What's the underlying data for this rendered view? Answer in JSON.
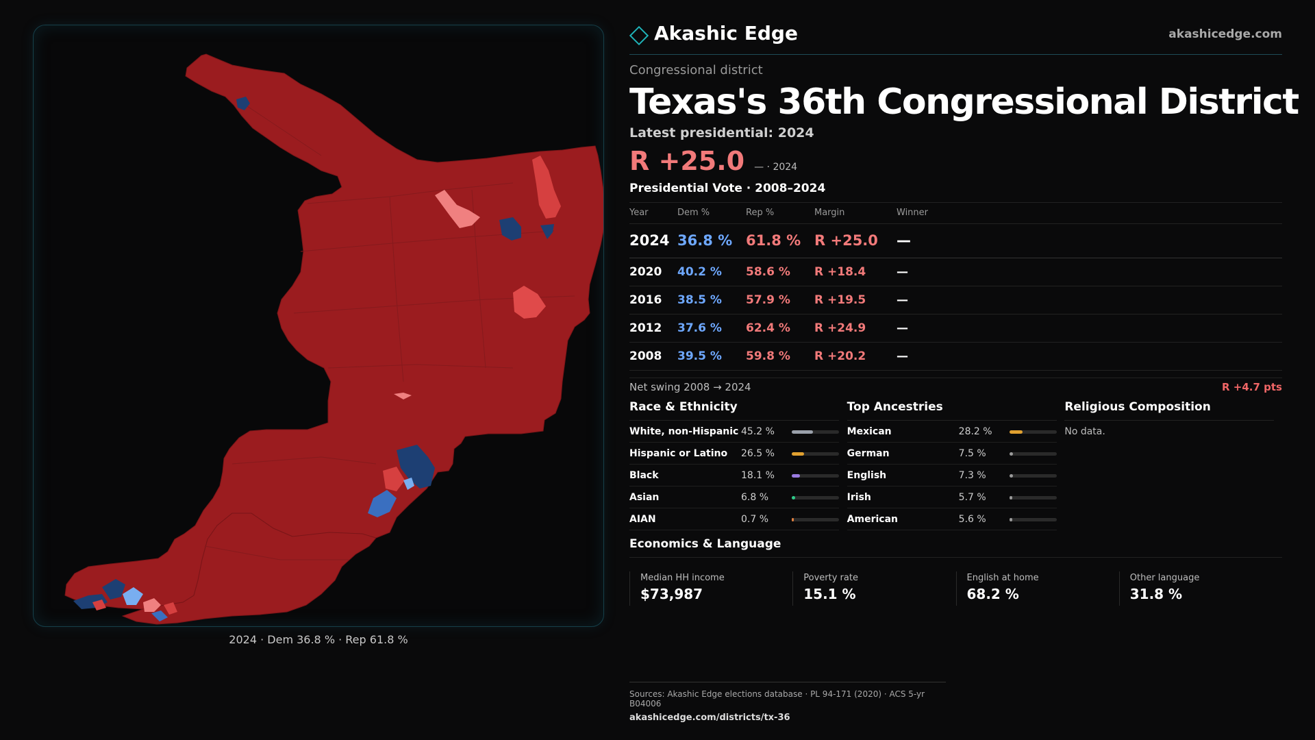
{
  "brand": {
    "name": "Akashic Edge",
    "url": "akashicedge.com",
    "accent": "#1fb3b8"
  },
  "header": {
    "eyebrow": "Congressional district",
    "title": "Texas's  36th Congressional District",
    "latest": "Latest presidential: 2024",
    "margin": "R +25.0",
    "margin_sub": "— · 2024"
  },
  "presidential": {
    "title": "Presidential Vote · 2008–2024",
    "columns": [
      "Year",
      "Dem %",
      "Rep %",
      "Margin",
      "Winner"
    ],
    "rows": [
      {
        "year": "2024",
        "dem": "36.8 %",
        "rep": "61.8 %",
        "margin": "R +25.0",
        "winner": "—"
      },
      {
        "year": "2020",
        "dem": "40.2 %",
        "rep": "58.6 %",
        "margin": "R +18.4",
        "winner": "—"
      },
      {
        "year": "2016",
        "dem": "38.5 %",
        "rep": "57.9 %",
        "margin": "R +19.5",
        "winner": "—"
      },
      {
        "year": "2012",
        "dem": "37.6 %",
        "rep": "62.4 %",
        "margin": "R +24.9",
        "winner": "—"
      },
      {
        "year": "2008",
        "dem": "39.5 %",
        "rep": "59.8 %",
        "margin": "R +20.2",
        "winner": "—"
      }
    ],
    "swing_label": "Net swing 2008 → 2024",
    "swing_value": "R +4.7 pts"
  },
  "race": {
    "title": "Race & Ethnicity",
    "items": [
      {
        "label": "White, non-Hispanic",
        "pct": "45.2 %",
        "value": 45.2,
        "color": "#9aa0aa"
      },
      {
        "label": "Hispanic or Latino",
        "pct": "26.5 %",
        "value": 26.5,
        "color": "#e0a030"
      },
      {
        "label": "Black",
        "pct": "18.1 %",
        "value": 18.1,
        "color": "#9a7ae0"
      },
      {
        "label": "Asian",
        "pct": "6.8 %",
        "value": 6.8,
        "color": "#2ecc8a"
      },
      {
        "label": "AIAN",
        "pct": "0.7 %",
        "value": 0.7,
        "color": "#e08040"
      }
    ]
  },
  "ancestry": {
    "title": "Top Ancestries",
    "items": [
      {
        "label": "Mexican",
        "pct": "28.2 %",
        "value": 28.2,
        "color": "#e0a030"
      },
      {
        "label": "German",
        "pct": "7.5 %",
        "value": 7.5,
        "color": "#9a9a9a"
      },
      {
        "label": "English",
        "pct": "7.3 %",
        "value": 7.3,
        "color": "#9a9a9a"
      },
      {
        "label": "Irish",
        "pct": "5.7 %",
        "value": 5.7,
        "color": "#9a9a9a"
      },
      {
        "label": "American",
        "pct": "5.6 %",
        "value": 5.6,
        "color": "#9a9a9a"
      }
    ]
  },
  "religion": {
    "title": "Religious Composition",
    "nodata": "No data."
  },
  "economics": {
    "title": "Economics & Language",
    "cells": [
      {
        "label": "Median HH income",
        "value": "$73,987"
      },
      {
        "label": "Poverty rate",
        "value": "15.1 %"
      },
      {
        "label": "English at home",
        "value": "68.2 %"
      },
      {
        "label": "Other language",
        "value": "31.8 %"
      }
    ]
  },
  "map": {
    "caption": "2024 · Dem 36.8 % · Rep 61.8 %",
    "colors": {
      "rep_dark": "#9b1c1f",
      "rep_light": "#d64040",
      "rep_pale": "#f08080",
      "dem_dark": "#1d3f73",
      "dem_mid": "#3a6fc0",
      "dem_light": "#79aef0",
      "border": "#7a1518"
    }
  },
  "sources": {
    "line1": "Sources: Akashic Edge elections database · PL 94-171 (2020) · ACS 5-yr B04006",
    "line2": "akashicedge.com/districts/tx-36"
  }
}
